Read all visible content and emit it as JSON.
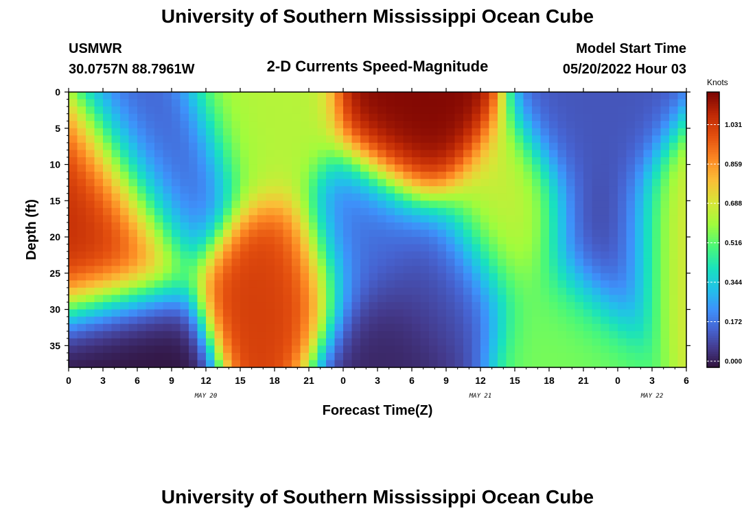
{
  "header": {
    "title": "University of Southern Mississippi Ocean Cube",
    "station_name": "USMWR",
    "station_coords": "30.0757N  88.7961W",
    "subtitle": "2-D Currents Speed-Magnitude",
    "model_label": "Model Start Time",
    "model_time": "05/20/2022 Hour 03",
    "title_repeat": "University of Southern Mississippi Ocean Cube"
  },
  "chart_data": {
    "type": "heatmap",
    "title": "2-D Currents Speed-Magnitude",
    "xlabel": "Forecast Time(Z)",
    "ylabel": "Depth (ft)",
    "x_tick_labels": [
      "0",
      "3",
      "6",
      "9",
      "12",
      "15",
      "18",
      "21",
      "0",
      "3",
      "6",
      "9",
      "12",
      "15",
      "18",
      "21",
      "0",
      "3",
      "6"
    ],
    "x_range_hours": [
      0,
      54
    ],
    "date_labels": [
      {
        "label": "MAY 20",
        "at_hour": 12
      },
      {
        "label": "MAY 21",
        "at_hour": 36
      },
      {
        "label": "MAY 22",
        "at_hour": 51
      }
    ],
    "y_tick_labels": [
      "0",
      "5",
      "10",
      "15",
      "20",
      "25",
      "30",
      "35"
    ],
    "ylim": [
      38,
      0
    ],
    "colorbar": {
      "label": "Knots",
      "ticks": [
        "0.000",
        "0.172",
        "0.344",
        "0.516",
        "0.688",
        "0.859",
        "1.031"
      ],
      "range": [
        0,
        1.2
      ],
      "colormap": "turbo"
    },
    "value_units": "Knots",
    "features": [
      {
        "time_h": 4,
        "depth_ft": 20,
        "speed": 1.1
      },
      {
        "time_h": 5.5,
        "depth_ft": 36,
        "speed": 0.0
      },
      {
        "time_h": 9,
        "depth_ft": 12,
        "speed": 0.15
      },
      {
        "time_h": 17,
        "depth_ft": 5,
        "speed": 0.66
      },
      {
        "time_h": 18,
        "depth_ft": 26,
        "speed": 1.05
      },
      {
        "time_h": 26,
        "depth_ft": 20,
        "speed": 0.18
      },
      {
        "time_h": 28,
        "depth_ft": 36,
        "speed": 0.04
      },
      {
        "time_h": 30,
        "depth_ft": 4,
        "speed": 1.19
      },
      {
        "time_h": 33,
        "depth_ft": 27,
        "speed": 0.12
      },
      {
        "time_h": 38.5,
        "depth_ft": 18,
        "speed": 0.7
      },
      {
        "time_h": 43,
        "depth_ft": 33,
        "speed": 0.58
      },
      {
        "time_h": 46,
        "depth_ft": 5,
        "speed": 0.14
      },
      {
        "time_h": 47,
        "depth_ft": 20,
        "speed": 0.08
      },
      {
        "time_h": 54,
        "depth_ft": 20,
        "speed": 0.75
      }
    ]
  }
}
